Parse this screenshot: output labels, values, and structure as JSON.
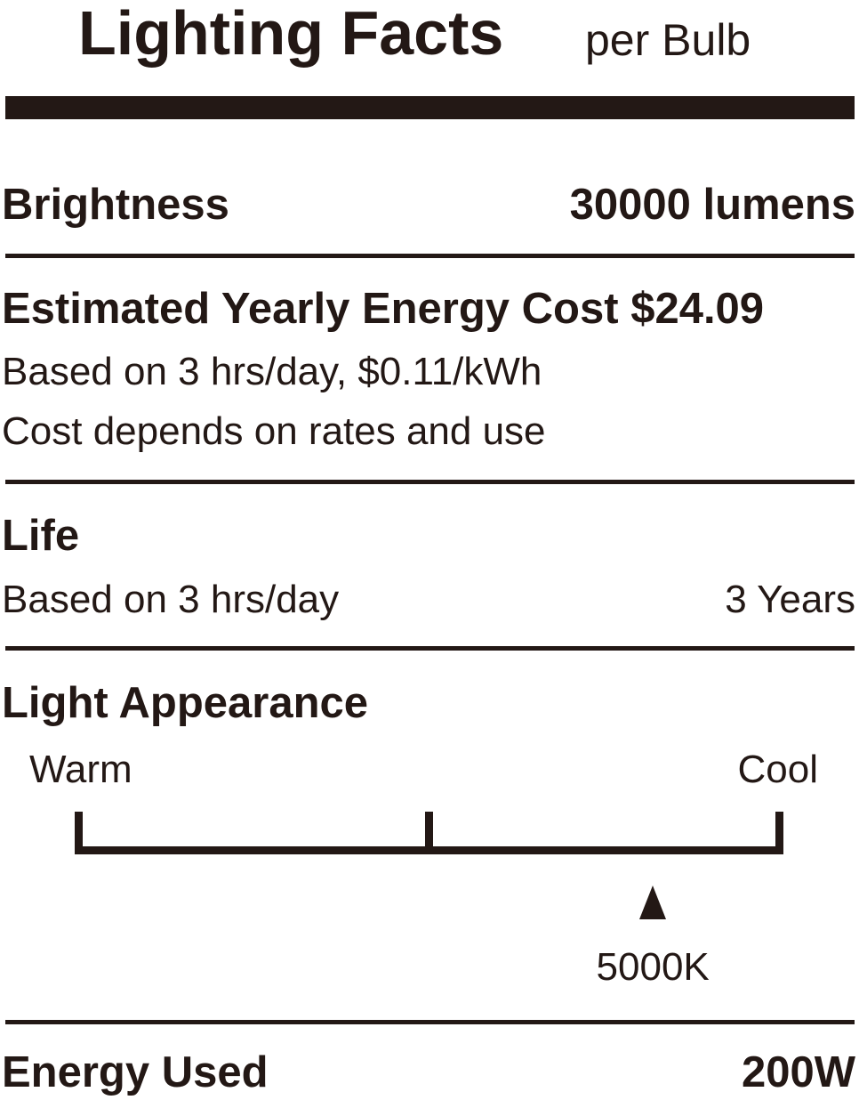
{
  "header": {
    "title": "Lighting Facts",
    "suffix": "per Bulb"
  },
  "brightness": {
    "label": "Brightness",
    "value": "30000 lumens"
  },
  "energy_cost": {
    "label": "Estimated Yearly Energy Cost",
    "value": "$24.09",
    "note1": "Based on 3 hrs/day, $0.11/kWh",
    "note2": "Cost depends on rates and use"
  },
  "life": {
    "label": "Life",
    "note": "Based on 3 hrs/day",
    "value": "3 Years"
  },
  "light_appearance": {
    "label": "Light Appearance",
    "warm_label": "Warm",
    "cool_label": "Cool",
    "marker_value": "5000K",
    "marker_position": 0.82
  },
  "energy_used": {
    "label": "Energy Used",
    "value": "200W"
  },
  "colors": {
    "ink": "#231815",
    "background": "#ffffff"
  }
}
